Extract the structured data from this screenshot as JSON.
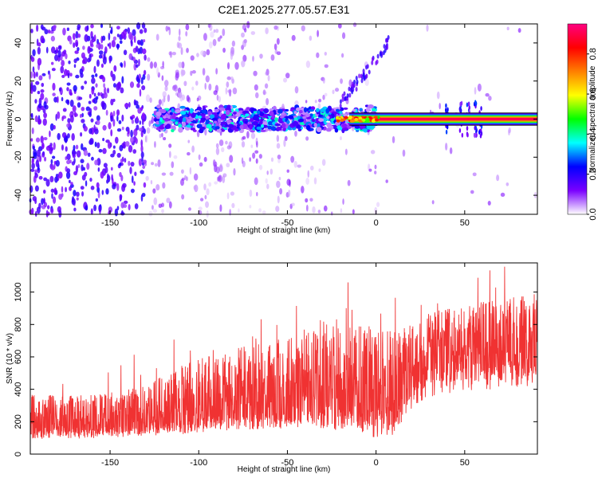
{
  "title": "C2E1.2025.277.05.57.E31",
  "chart_data": [
    {
      "type": "heatmap",
      "xlabel": "Height of straight line (km)",
      "ylabel": "Frequency (Hz)",
      "xlim": [
        -195,
        91
      ],
      "ylim": [
        -50,
        50
      ],
      "x_ticks": [
        -150,
        -100,
        -50,
        0,
        50
      ],
      "y_ticks": [
        -40,
        -20,
        0,
        20,
        40
      ],
      "colorbar": {
        "label": "Normalized spectral amplitude",
        "range": [
          0,
          0.95
        ],
        "ticks": [
          0.0,
          0.2,
          0.4,
          0.6,
          0.8
        ],
        "tick_labels": [
          "0.0",
          "0.2",
          "0.4",
          "0.6",
          "0.8"
        ],
        "colormap": [
          "#ffffff",
          "#7a00ff",
          "#0000ff",
          "#00ffff",
          "#00ff00",
          "#ffff00",
          "#ff7f00",
          "#ff0000",
          "#ff0080"
        ]
      },
      "features": {
        "central_line_frequency_hz": 0,
        "strong_line_start_km": -15,
        "noise_edge_km": -130,
        "rising_streak": {
          "x_km": [
            -20,
            7
          ],
          "freq_hz": [
            8,
            40
          ]
        },
        "bursts_km": [
          40,
          48,
          52,
          56,
          59
        ]
      }
    },
    {
      "type": "line",
      "xlabel": "Height of straight line (km)",
      "ylabel": "SNR (10 * v/v)",
      "xlim": [
        -195,
        91
      ],
      "ylim": [
        0,
        1180
      ],
      "x_ticks": [
        -150,
        -100,
        -50,
        0,
        50
      ],
      "y_ticks": [
        0,
        200,
        400,
        600,
        800,
        1000
      ],
      "series": [
        {
          "color": "#f03232",
          "x": [
            -195,
            -170,
            -150,
            -130,
            -110,
            -90,
            -70,
            -50,
            -30,
            -10,
            0,
            10,
            20,
            30,
            50,
            70,
            91
          ],
          "envelope_low": [
            90,
            95,
            100,
            110,
            120,
            140,
            150,
            160,
            160,
            130,
            100,
            120,
            270,
            350,
            390,
            400,
            420
          ],
          "envelope_high": [
            370,
            360,
            380,
            420,
            550,
            620,
            680,
            720,
            840,
            800,
            800,
            760,
            800,
            880,
            920,
            960,
            990
          ],
          "median": [
            180,
            185,
            190,
            220,
            270,
            300,
            320,
            330,
            360,
            360,
            350,
            360,
            500,
            590,
            620,
            640,
            660
          ]
        }
      ]
    }
  ]
}
